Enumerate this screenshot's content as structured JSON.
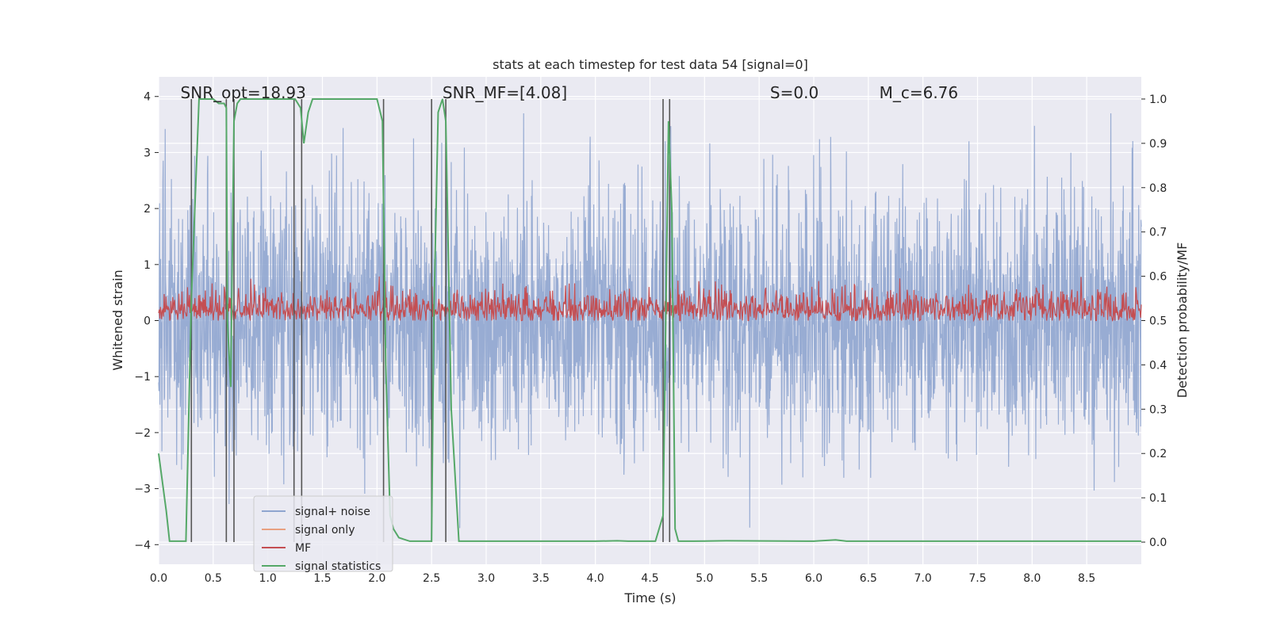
{
  "chart_data": {
    "type": "line",
    "title": "stats at each timestep for test data 54 [signal=0]",
    "xlabel": "Time (s)",
    "ylabel_left": "Whitened strain",
    "ylabel_right": "Detection probability/MF",
    "xlim": [
      0.0,
      9.0
    ],
    "ylim_left": [
      -4.35,
      4.35
    ],
    "ylim_right": [
      -0.05,
      1.05
    ],
    "x_ticks": [
      0.0,
      0.5,
      1.0,
      1.5,
      2.0,
      2.5,
      3.0,
      3.5,
      4.0,
      4.5,
      5.0,
      5.5,
      6.0,
      6.5,
      7.0,
      7.5,
      8.0,
      8.5
    ],
    "x_tick_labels": [
      "0.0",
      "0.5",
      "1.0",
      "1.5",
      "2.0",
      "2.5",
      "3.0",
      "3.5",
      "4.0",
      "4.5",
      "5.0",
      "5.5",
      "6.0",
      "6.5",
      "7.0",
      "7.5",
      "8.0",
      "8.5"
    ],
    "y_left_ticks": [
      -4,
      -3,
      -2,
      -1,
      0,
      1,
      2,
      3,
      4
    ],
    "y_left_tick_labels": [
      "−4",
      "−3",
      "−2",
      "−1",
      "0",
      "1",
      "2",
      "3",
      "4"
    ],
    "y_right_ticks": [
      0.0,
      0.1,
      0.2,
      0.3,
      0.4,
      0.5,
      0.6,
      0.7,
      0.8,
      0.9,
      1.0
    ],
    "y_right_tick_labels": [
      "0.0",
      "0.1",
      "0.2",
      "0.3",
      "0.4",
      "0.5",
      "0.6",
      "0.7",
      "0.8",
      "0.9",
      "1.0"
    ],
    "grid": true,
    "legend_position": "lower-left",
    "series": [
      {
        "name": "signal+ noise",
        "color": "#8fa5cf",
        "axis": "left",
        "description_range": [
          -3.9,
          3.7
        ]
      },
      {
        "name": "signal only",
        "color": "#e8a080",
        "axis": "left"
      },
      {
        "name": "MF",
        "color": "#c44e52",
        "axis": "right",
        "range": [
          0.5,
          0.6
        ]
      },
      {
        "name": "signal statistics",
        "color": "#55a868",
        "axis": "right",
        "x": [
          0.0,
          0.07,
          0.1,
          0.25,
          0.3,
          0.37,
          0.4,
          0.5,
          0.55,
          0.6,
          0.62,
          0.63,
          0.66,
          0.69,
          0.72,
          0.75,
          0.8,
          1.0,
          1.2,
          1.25,
          1.3,
          1.33,
          1.37,
          1.41,
          1.45,
          1.6,
          1.8,
          2.0,
          2.05,
          2.08,
          2.12,
          2.15,
          2.2,
          2.3,
          2.5,
          2.52,
          2.56,
          2.6,
          2.63,
          2.68,
          2.75,
          3.0,
          4.0,
          4.2,
          4.3,
          4.55,
          4.62,
          4.67,
          4.7,
          4.73,
          4.76,
          4.9,
          5.2,
          6.0,
          6.2,
          6.3,
          7.0,
          8.0,
          9.0
        ],
        "values": [
          0.2,
          0.07,
          0.002,
          0.002,
          0.55,
          1.0,
          1.0,
          1.0,
          0.99,
          0.99,
          0.98,
          0.5,
          0.35,
          0.95,
          0.99,
          1.0,
          1.0,
          1.0,
          1.0,
          1.0,
          0.98,
          0.9,
          0.97,
          1.0,
          1.0,
          1.0,
          1.0,
          1.0,
          0.95,
          0.4,
          0.06,
          0.03,
          0.01,
          0.002,
          0.002,
          0.5,
          0.97,
          1.0,
          0.95,
          0.3,
          0.002,
          0.002,
          0.002,
          0.003,
          0.002,
          0.002,
          0.06,
          0.95,
          0.75,
          0.03,
          0.002,
          0.002,
          0.003,
          0.002,
          0.005,
          0.002,
          0.002,
          0.002,
          0.002
        ]
      }
    ],
    "vertical_lines_x": [
      0.3,
      0.62,
      0.69,
      1.24,
      1.31,
      2.06,
      2.5,
      2.63,
      4.62,
      4.68
    ],
    "annotations": [
      {
        "text": "SNR_opt=18.93",
        "x": 0.2
      },
      {
        "text": "SNR_MF=[4.08]",
        "x": 2.6
      },
      {
        "text": "S=0.0",
        "x": 5.6
      },
      {
        "text": "M_c=6.76",
        "x": 6.6
      }
    ]
  }
}
